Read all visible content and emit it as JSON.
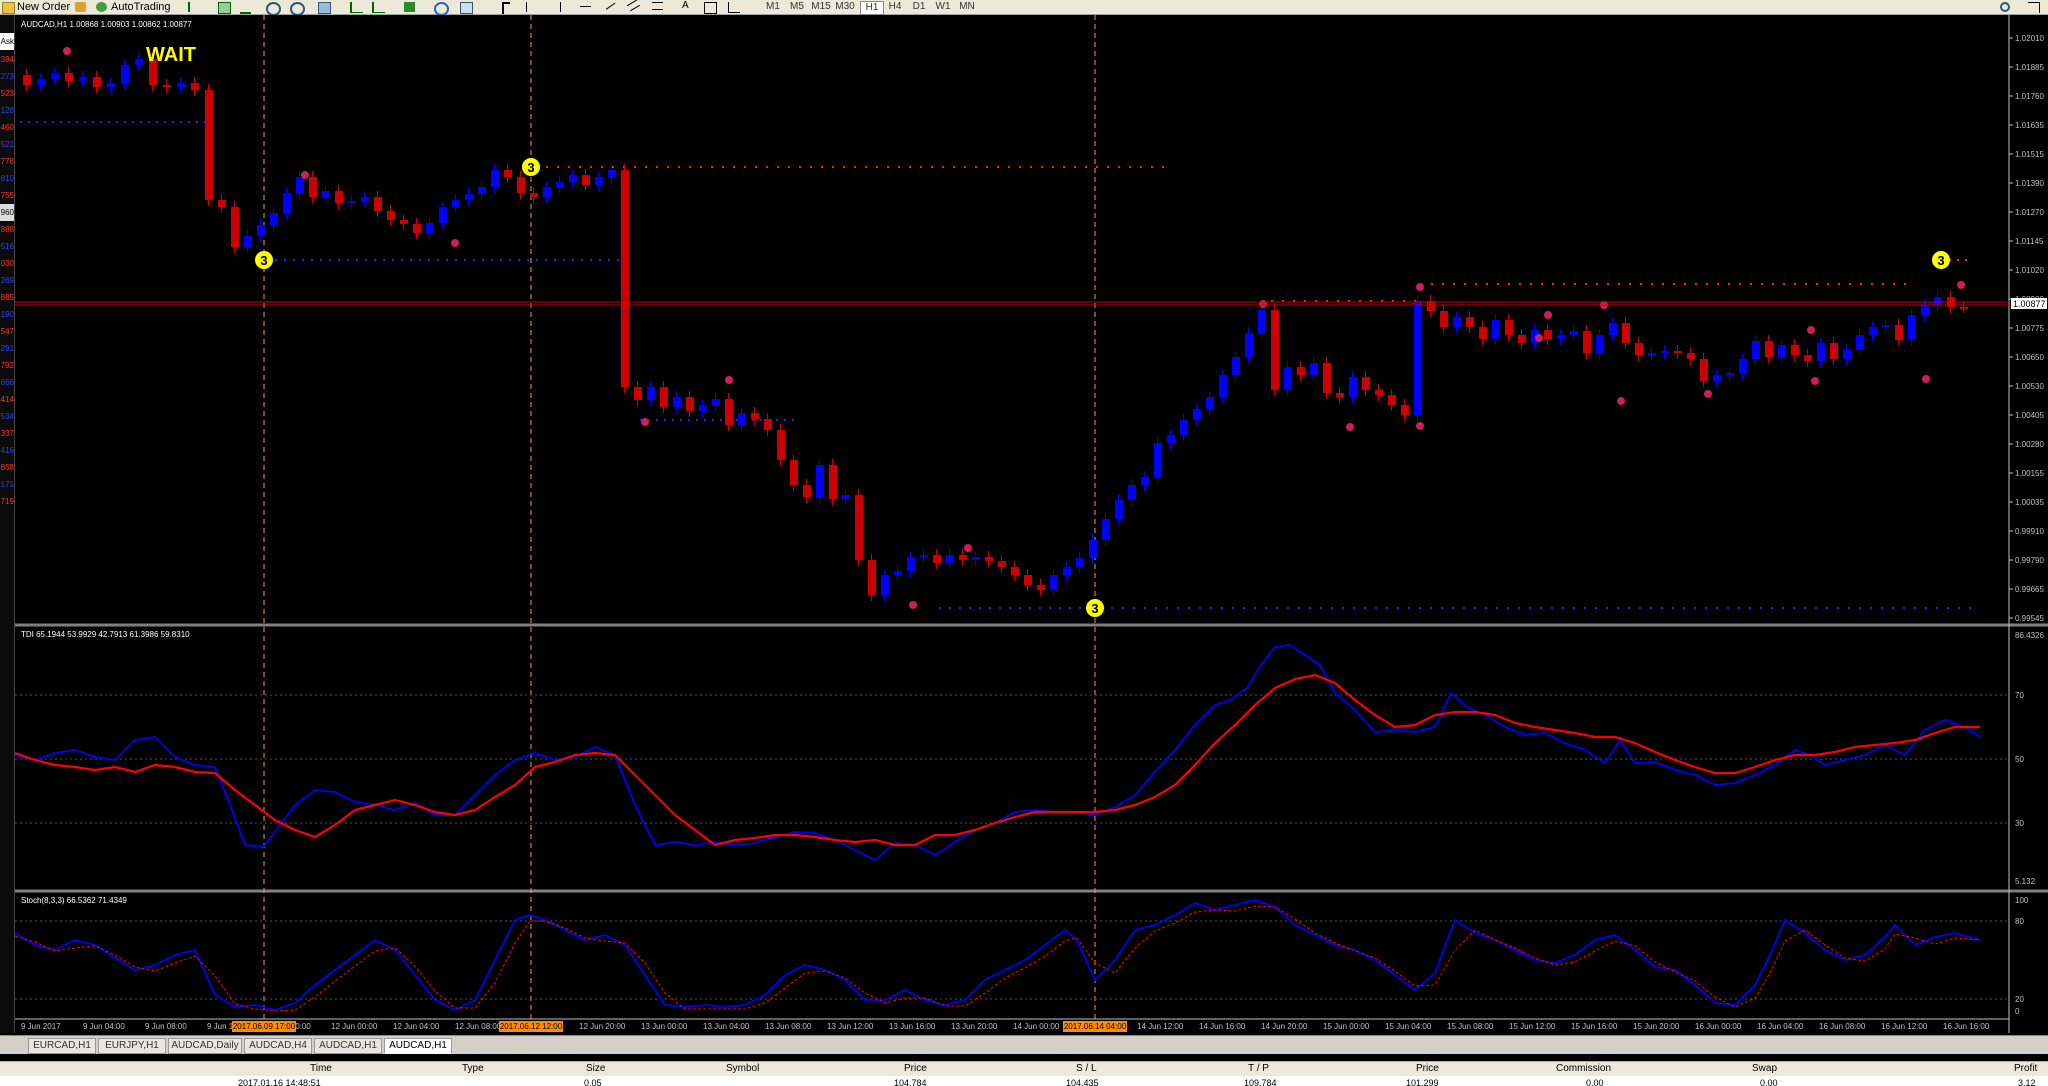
{
  "toolbar": {
    "new_order_label": "New Order",
    "autotrading_label": "AutoTrading",
    "timeframes": [
      "M1",
      "M5",
      "M15",
      "M30",
      "H1",
      "H4",
      "D1",
      "W1",
      "MN"
    ]
  },
  "market_watch": {
    "header": "Ask",
    "values": [
      "394",
      "273",
      "523",
      "128",
      "460",
      "521",
      "778",
      "810",
      "755",
      "960",
      "888",
      "516",
      "030",
      "269",
      "885",
      "190",
      "547",
      "291",
      "792",
      "666",
      "414",
      "534",
      "337",
      "416",
      "858",
      "171",
      "719"
    ]
  },
  "chart": {
    "title": "AUDCAD,H1  1.00868 1.00903 1.00862 1.00877",
    "wait_label": "WAIT",
    "price_labels": [
      "1.02010",
      "1.01885",
      "1.01760",
      "1.01635",
      "1.01515",
      "1.01390",
      "1.01270",
      "1.01145",
      "1.01020",
      "1.00900",
      "1.00775",
      "1.00650",
      "1.00530",
      "1.00405",
      "1.00280",
      "1.00155",
      "1.00035",
      "0.99910",
      "0.99790",
      "0.99665",
      "0.99545"
    ],
    "current_price_label": "1.00877",
    "signal_labels": [
      "3",
      "3",
      "3",
      "3"
    ],
    "time_labels": [
      "9 Jun 2017",
      "9 Jun 04:00",
      "9 Jun 08:00",
      "9 Jun 12:00",
      "9 Jun 20:00",
      "12 Jun 00:00",
      "12 Jun 04:00",
      "12 Jun 08:00",
      "12 Jun 16:00",
      "12 Jun 20:00",
      "13 Jun 00:00",
      "13 Jun 04:00",
      "13 Jun 08:00",
      "13 Jun 12:00",
      "13 Jun 16:00",
      "13 Jun 20:00",
      "14 Jun 00:00",
      "14 Jun 08:00",
      "14 Jun 12:00",
      "14 Jun 16:00",
      "14 Jun 20:00",
      "15 Jun 00:00",
      "15 Jun 04:00",
      "15 Jun 08:00",
      "15 Jun 12:00",
      "15 Jun 16:00",
      "15 Jun 20:00",
      "16 Jun 00:00",
      "16 Jun 04:00",
      "16 Jun 08:00",
      "16 Jun 12:00",
      "16 Jun 16:00"
    ],
    "time_highlights": [
      "2017.06.09 17:00",
      "2017.06.12 12:00",
      "2017.06.14 04:00"
    ],
    "colors": {
      "bull": "#0000ff",
      "bear": "#cc0000",
      "signal": "#ffff00",
      "dots_red": "#ff2020",
      "dots_blue": "#2020ff",
      "marker": "#cc1f5a",
      "vline": "#ff9933"
    }
  },
  "tdi": {
    "title": "TDI 65.1944 53.9929 42.7913 61.3986 59.8310",
    "levels": [
      "86.4326",
      "70",
      "50",
      "30",
      "5.132"
    ]
  },
  "stoch": {
    "title": "Stoch(8,3,3) 66.5362 71.4349",
    "levels": [
      "100",
      "80",
      "20",
      "0"
    ]
  },
  "symbol_tabs": [
    "EURCAD,H1",
    "EURJPY,H1",
    "AUDCAD,Daily",
    "AUDCAD,H4",
    "AUDCAD,H1",
    "AUDCAD,H1"
  ],
  "active_tab_index": 5,
  "terminal": {
    "columns": [
      "Time",
      "Type",
      "Size",
      "Symbol",
      "Price",
      "S / L",
      "T / P",
      "Price",
      "Commission",
      "Swap",
      "Profit"
    ],
    "row": [
      "2017.01.16 14:48:51",
      "",
      "0.05",
      "",
      "104.784",
      "104.435",
      "109.784",
      "101.299",
      "0.00",
      "0.00",
      "3.12"
    ]
  }
}
